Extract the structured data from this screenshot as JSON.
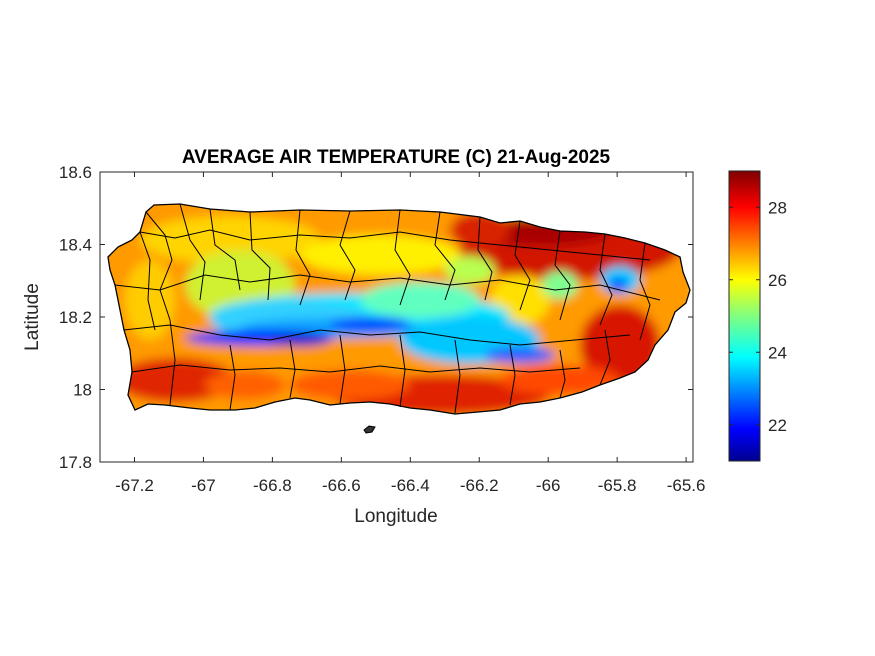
{
  "title": "AVERAGE AIR TEMPERATURE (C) 21-Aug-2025",
  "map_data": {
    "type": "heatmap",
    "region": "Puerto Rico",
    "xlabel": "Longitude",
    "ylabel": "Latitude",
    "xlim": [
      -67.3,
      -65.58
    ],
    "ylim": [
      17.8,
      18.6
    ],
    "xticks": [
      -67.2,
      -67,
      -66.8,
      -66.6,
      -66.4,
      -66.2,
      -66,
      -65.8,
      -65.6
    ],
    "xtick_labels": [
      "-67.2",
      "-67",
      "-66.8",
      "-66.6",
      "-66.4",
      "-66.2",
      "-66",
      "-65.8",
      "-65.6"
    ],
    "yticks": [
      17.8,
      18,
      18.2,
      18.4,
      18.6
    ],
    "ytick_labels": [
      "17.8",
      "18",
      "18.2",
      "18.4",
      "18.6"
    ],
    "colorbar": {
      "colormap": "jet",
      "range": [
        21,
        29
      ],
      "ticks": [
        22,
        24,
        26,
        28
      ],
      "tick_labels": [
        "22",
        "24",
        "26",
        "28"
      ]
    },
    "grid": false
  }
}
